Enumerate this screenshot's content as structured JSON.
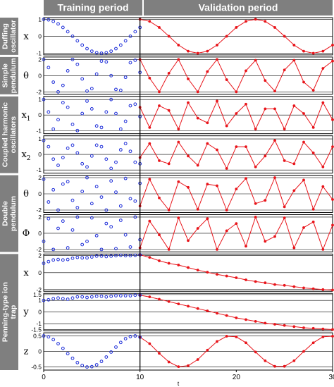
{
  "header": {
    "training_label": "Training period",
    "validation_label": "Validation period"
  },
  "colors": {
    "training": "#1f2fd9",
    "validation": "#e8141a",
    "band": "#7f7f7f"
  },
  "chart_data": {
    "type": "line",
    "xlabel": "t",
    "xlim": [
      0,
      30
    ],
    "xticks": [
      0,
      10,
      20,
      30
    ],
    "training_end": 10,
    "groups": [
      {
        "label": "Duffing oscillator",
        "panels": [
          0
        ]
      },
      {
        "label": "Simple pendulum",
        "panels": [
          1
        ]
      },
      {
        "label": "Coupled harmonic oscillators",
        "panels": [
          2,
          3
        ]
      },
      {
        "label": "Double pendulum",
        "panels": [
          4,
          5
        ]
      },
      {
        "label": "Penning-type ion trap",
        "panels": [
          6,
          7,
          8
        ]
      }
    ],
    "panels": [
      {
        "var": "x",
        "sub": "",
        "ylim": [
          -1.1,
          1.1
        ],
        "yticks": [
          "1",
          "0",
          "-1"
        ],
        "ytick_values": [
          1,
          0,
          -1
        ],
        "training": {
          "x": [
            0,
            0.5,
            1,
            1.5,
            2,
            2.5,
            3,
            3.5,
            4,
            4.5,
            5,
            5.5,
            6,
            6.5,
            7,
            7.5,
            8,
            8.5,
            9,
            9.5,
            10
          ],
          "y": [
            1,
            0.97,
            0.88,
            0.73,
            0.52,
            0.27,
            0,
            -0.27,
            -0.52,
            -0.73,
            -0.88,
            -0.97,
            -1,
            -0.97,
            -0.88,
            -0.73,
            -0.52,
            -0.27,
            0,
            0.27,
            0.52
          ]
        },
        "validation": {
          "x": [
            10,
            11,
            12,
            13,
            14,
            15,
            16,
            17,
            18,
            19,
            20,
            21,
            22,
            23,
            24,
            25,
            26,
            27,
            28,
            29,
            30
          ],
          "y": [
            1,
            0.88,
            0.52,
            0,
            -0.52,
            -0.88,
            -1,
            -0.88,
            -0.52,
            0,
            0.52,
            0.88,
            1,
            0.88,
            0.52,
            0,
            -0.52,
            -0.88,
            -1,
            -0.88,
            -0.52
          ]
        }
      },
      {
        "var": "θ",
        "sub": "",
        "ylim": [
          -2.3,
          2.3
        ],
        "yticks": [
          "2",
          "0",
          "-2"
        ],
        "ytick_values": [
          2,
          0,
          -2
        ],
        "training": {
          "x": [
            0,
            0.5,
            1,
            1.5,
            2,
            2.5,
            3,
            3.5,
            4,
            4.5,
            5,
            5.5,
            6,
            6.5,
            7,
            7.5,
            8,
            8.5,
            9,
            9.5,
            10
          ],
          "y": [
            2,
            1,
            -0.8,
            -2,
            -1.2,
            0.6,
            2,
            1.4,
            -0.4,
            -1.9,
            -1.6,
            0.2,
            1.8,
            1.7,
            0,
            -1.7,
            -1.8,
            -0.2,
            1.6,
            1.9,
            0.4
          ]
        },
        "validation": {
          "x": [
            10,
            11,
            12,
            13,
            14,
            15,
            16,
            17,
            18,
            19,
            20,
            21,
            22,
            23,
            24,
            25,
            26,
            27,
            28,
            29,
            30
          ],
          "y": [
            2,
            -0.3,
            -2,
            0.3,
            2,
            -0.4,
            -2,
            0.5,
            2,
            -0.5,
            -2,
            0.6,
            1.9,
            -0.6,
            -1.9,
            0.7,
            1.9,
            -0.8,
            -1.8,
            0.9,
            1.8
          ]
        }
      },
      {
        "var": "x",
        "sub": "1",
        "ylim": [
          -1.2,
          1.2
        ],
        "yticks": [
          "1",
          "0",
          "-1"
        ],
        "ytick_values": [
          1,
          0,
          -1
        ],
        "training": {
          "x": [
            0,
            0.5,
            1,
            1.5,
            2,
            2.5,
            3,
            3.5,
            4,
            4.5,
            5,
            5.5,
            6,
            6.5,
            7,
            7.5,
            8,
            8.5,
            9,
            9.5,
            10
          ],
          "y": [
            1,
            0.2,
            -0.9,
            -0.3,
            0.8,
            0.5,
            -0.6,
            -1,
            0.1,
            0.9,
            0.4,
            -0.7,
            -0.8,
            0.2,
            1,
            0.1,
            -0.9,
            -0.4,
            0.6,
            0.7,
            -0.1
          ]
        },
        "validation": {
          "x": [
            10,
            11,
            12,
            13,
            14,
            15,
            16,
            17,
            18,
            19,
            20,
            21,
            22,
            23,
            24,
            25,
            26,
            27,
            28,
            29,
            30
          ],
          "y": [
            0.5,
            -0.8,
            0.6,
            0.3,
            -0.9,
            0.8,
            -0.2,
            -0.5,
            0.9,
            -0.7,
            0.1,
            0.7,
            -0.9,
            0.4,
            0.4,
            -0.9,
            0.6,
            0.1,
            -0.8,
            0.8,
            -0.3
          ]
        }
      },
      {
        "var": "x",
        "sub": "2",
        "ylim": [
          -1.2,
          1.2
        ],
        "yticks": [
          "1",
          "0",
          "-1"
        ],
        "ytick_values": [
          1,
          0,
          -1
        ],
        "training": {
          "x": [
            0,
            0.5,
            1,
            1.5,
            2,
            2.5,
            3,
            3.5,
            4,
            4.5,
            5,
            5.5,
            6,
            6.5,
            7,
            7.5,
            8,
            8.5,
            9,
            9.5,
            10
          ],
          "y": [
            0.9,
            0.5,
            -0.3,
            -0.7,
            -0.2,
            0.4,
            0.6,
            0.1,
            -0.6,
            -0.8,
            -0.1,
            0.6,
            0.5,
            -0.3,
            -0.9,
            -0.5,
            0.3,
            0.7,
            0.2,
            -0.5,
            -0.6
          ]
        },
        "validation": {
          "x": [
            10,
            11,
            12,
            13,
            14,
            15,
            16,
            17,
            18,
            19,
            20,
            21,
            22,
            23,
            24,
            25,
            26,
            27,
            28,
            29,
            30
          ],
          "y": [
            -0.2,
            0.7,
            -0.4,
            -0.6,
            0.8,
            -0.1,
            -0.7,
            0.7,
            0.3,
            -0.9,
            0.5,
            0.5,
            -0.8,
            -0.1,
            0.9,
            -0.4,
            -0.6,
            0.8,
            0.1,
            -0.8,
            0.5
          ]
        }
      },
      {
        "var": "θ",
        "sub": "",
        "ylim": [
          -2.3,
          2.3
        ],
        "yticks": [
          "2",
          "0",
          "-2"
        ],
        "ytick_values": [
          2,
          0,
          -2
        ],
        "training": {
          "x": [
            0,
            0.5,
            1,
            1.5,
            2,
            2.5,
            3,
            3.5,
            4,
            4.5,
            5,
            5.5,
            6,
            6.5,
            7,
            7.5,
            8,
            8.5,
            9,
            9.5,
            10
          ],
          "y": [
            1.8,
            -1,
            0.5,
            -2,
            1.2,
            1.5,
            -0.8,
            -1.7,
            0.3,
            2,
            -1.2,
            0.9,
            -0.4,
            -2,
            1.6,
            0.2,
            -1.5,
            1.9,
            -0.6,
            -0.9,
            1.3
          ]
        },
        "validation": {
          "x": [
            10,
            11,
            12,
            13,
            14,
            15,
            16,
            17,
            18,
            19,
            20,
            21,
            22,
            23,
            24,
            25,
            26,
            27,
            28,
            29,
            30
          ],
          "y": [
            -1.5,
            1.8,
            -0.5,
            -2,
            1.5,
            0.8,
            -1.9,
            1.2,
            1,
            -2,
            0.6,
            1.9,
            -1.2,
            -0.8,
            2,
            -1.6,
            0.4,
            1.7,
            -1.9,
            0.9,
            -0.7
          ]
        }
      },
      {
        "var": "Φ",
        "sub": "",
        "ylim": [
          -2.3,
          2.3
        ],
        "yticks": [
          "2",
          "0",
          "-2"
        ],
        "ytick_values": [
          2,
          0,
          -2
        ],
        "training": {
          "x": [
            0,
            0.5,
            1,
            1.5,
            2,
            2.5,
            3,
            3.5,
            4,
            4.5,
            5,
            5.5,
            6,
            6.5,
            7,
            7.5,
            8,
            8.5,
            9,
            9.5,
            10
          ],
          "y": [
            -1,
            1.8,
            -2,
            0.6,
            1.5,
            -1.8,
            0.4,
            2,
            -1.4,
            -1,
            1.9,
            -0.3,
            -2,
            1.2,
            0.8,
            -1.9,
            1.6,
            -0.2,
            -1.7,
            2,
            -0.8
          ]
        },
        "validation": {
          "x": [
            10,
            11,
            12,
            13,
            14,
            15,
            16,
            17,
            18,
            19,
            20,
            21,
            22,
            23,
            24,
            25,
            26,
            27,
            28,
            29,
            30
          ],
          "y": [
            -1.8,
            1.5,
            -0.2,
            -2,
            1.9,
            -0.9,
            0.6,
            1.8,
            -2,
            0.3,
            1.2,
            -1.6,
            2,
            -1,
            -0.4,
            1.9,
            -1.8,
            0.7,
            1.4,
            -2,
            1
          ]
        }
      },
      {
        "var": "x",
        "sub": "",
        "ylim": [
          -2.2,
          2.2
        ],
        "yticks": [
          "2",
          "0",
          "-2"
        ],
        "ytick_values": [
          2,
          0,
          -2
        ],
        "training": {
          "x": [
            0,
            0.5,
            1,
            1.5,
            2,
            2.5,
            3,
            3.5,
            4,
            4.5,
            5,
            5.5,
            6,
            6.5,
            7,
            7.5,
            8,
            8.5,
            9,
            9.5,
            10
          ],
          "y": [
            1.1,
            1.3,
            1.5,
            1.55,
            1.5,
            1.55,
            1.7,
            1.8,
            1.75,
            1.75,
            1.85,
            1.95,
            1.95,
            1.9,
            1.95,
            2,
            2.05,
            2,
            2,
            2.05,
            2.1
          ]
        },
        "validation": {
          "x": [
            10,
            11,
            12,
            13,
            14,
            15,
            16,
            17,
            18,
            19,
            20,
            21,
            22,
            23,
            24,
            25,
            26,
            27,
            28,
            29,
            30
          ],
          "y": [
            2.1,
            1.8,
            1.4,
            1.1,
            0.9,
            0.6,
            0.3,
            0.05,
            -0.2,
            -0.4,
            -0.6,
            -0.85,
            -1.05,
            -1.2,
            -1.4,
            -1.5,
            -1.65,
            -1.8,
            -1.9,
            -2,
            -2.05
          ]
        }
      },
      {
        "var": "y",
        "sub": "",
        "ylim": [
          -1.6,
          1.6
        ],
        "yticks": [
          "1.5",
          "1",
          "0",
          "-1",
          "-1.5"
        ],
        "ytick_values": [
          1.5,
          1,
          0,
          -1,
          -1.5
        ],
        "training": {
          "x": [
            0,
            0.5,
            1,
            1.5,
            2,
            2.5,
            3,
            3.5,
            4,
            4.5,
            5,
            5.5,
            6,
            6.5,
            7,
            7.5,
            8,
            8.5,
            9,
            9.5,
            10
          ],
          "y": [
            1,
            1.05,
            1.15,
            1.2,
            1.15,
            1.1,
            1.2,
            1.3,
            1.3,
            1.25,
            1.3,
            1.35,
            1.35,
            1.3,
            1.35,
            1.4,
            1.4,
            1.4,
            1.4,
            1.45,
            1.45
          ]
        },
        "validation": {
          "x": [
            10,
            11,
            12,
            13,
            14,
            15,
            16,
            17,
            18,
            19,
            20,
            21,
            22,
            23,
            24,
            25,
            26,
            27,
            28,
            29,
            30
          ],
          "y": [
            1.45,
            1.3,
            1.1,
            0.9,
            0.7,
            0.5,
            0.3,
            0.1,
            -0.1,
            -0.3,
            -0.5,
            -0.65,
            -0.8,
            -0.95,
            -1.05,
            -1.15,
            -1.25,
            -1.35,
            -1.4,
            -1.45,
            -1.5
          ]
        }
      },
      {
        "var": "z",
        "sub": "",
        "ylim": [
          -0.6,
          0.6
        ],
        "yticks": [
          "0.5",
          "0",
          "-0.5"
        ],
        "ytick_values": [
          0.5,
          0,
          -0.5
        ],
        "training": {
          "x": [
            0,
            0.5,
            1,
            1.5,
            2,
            2.5,
            3,
            3.5,
            4,
            4.5,
            5,
            5.5,
            6,
            6.5,
            7,
            7.5,
            8,
            8.5,
            9,
            9.5,
            10
          ],
          "y": [
            0.5,
            0.47,
            0.38,
            0.25,
            0.1,
            -0.07,
            -0.22,
            -0.36,
            -0.45,
            -0.5,
            -0.49,
            -0.43,
            -0.32,
            -0.18,
            -0.02,
            0.14,
            0.29,
            0.41,
            0.48,
            0.5,
            0.46
          ]
        },
        "validation": {
          "x": [
            10,
            11,
            12,
            13,
            14,
            15,
            16,
            17,
            18,
            19,
            20,
            21,
            22,
            23,
            24,
            25,
            26,
            27,
            28,
            29,
            30
          ],
          "y": [
            0.46,
            0.25,
            -0.06,
            -0.34,
            -0.49,
            -0.46,
            -0.26,
            0.04,
            0.32,
            0.49,
            0.47,
            0.28,
            -0.02,
            -0.3,
            -0.48,
            -0.48,
            -0.3,
            0,
            0.28,
            0.47,
            0.49
          ]
        }
      }
    ]
  }
}
